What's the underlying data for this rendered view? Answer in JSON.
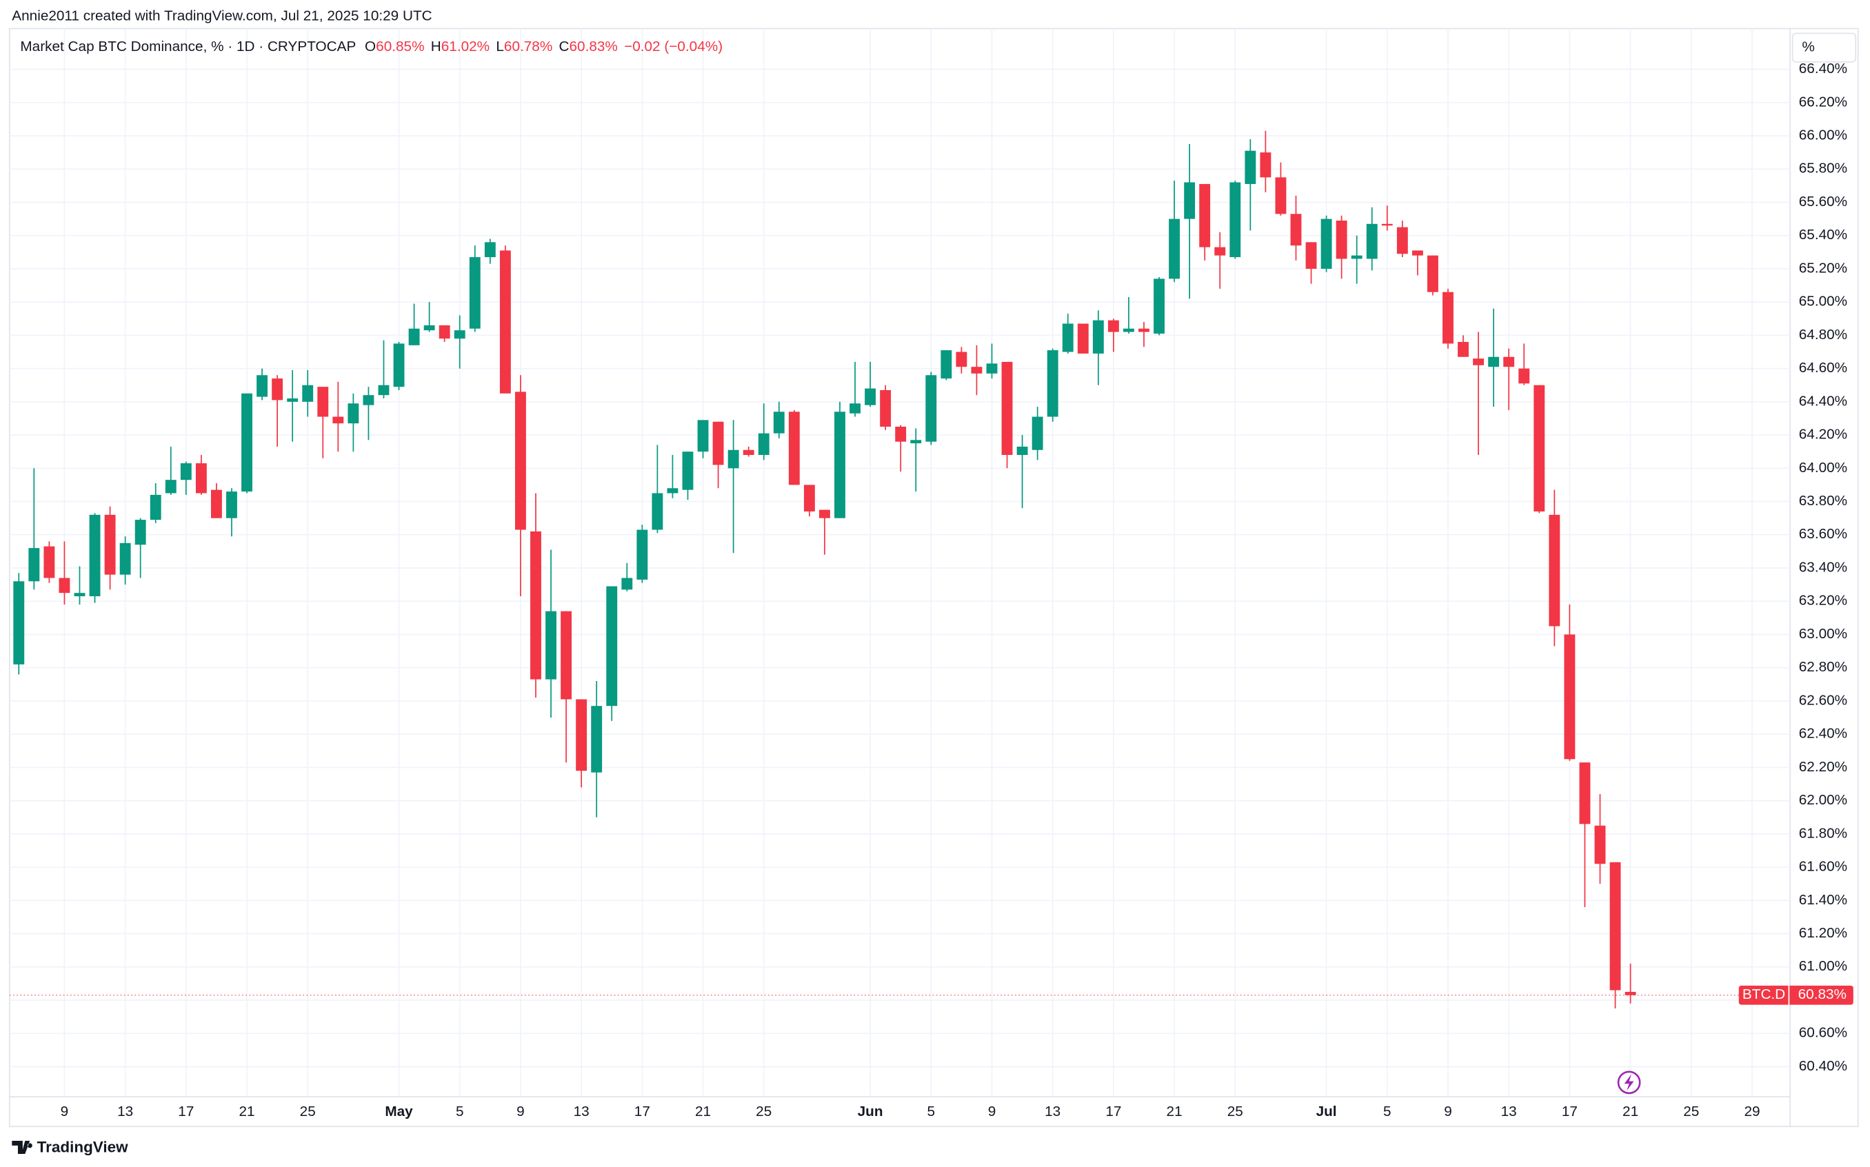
{
  "chart_data": {
    "type": "candlestick",
    "attribution": "Annie2011 created with TradingView.com, Jul 21, 2025 10:29 UTC",
    "title": "Market Cap BTC Dominance, % · 1D · CRYPTOCAP",
    "legend_items": [
      {
        "key": "O",
        "value": "60.85%"
      },
      {
        "key": "H",
        "value": "61.02%"
      },
      {
        "key": "L",
        "value": "60.78%"
      },
      {
        "key": "C",
        "value": "60.83%"
      }
    ],
    "change": "−0.02 (−0.04%)",
    "unit": "%",
    "symbol": "BTC.D",
    "brand": "TradingView",
    "up_color": "#089981",
    "down_color": "#f23645",
    "grid": true,
    "categories": [
      null,
      null,
      null,
      "9",
      null,
      null,
      null,
      "13",
      null,
      null,
      null,
      "17",
      null,
      null,
      null,
      "21",
      null,
      null,
      null,
      "25",
      null,
      null,
      null,
      null,
      null,
      "May",
      null,
      null,
      null,
      "5",
      null,
      null,
      null,
      "9",
      null,
      null,
      null,
      "13",
      null,
      null,
      null,
      "17",
      null,
      null,
      null,
      "21",
      null,
      null,
      null,
      "25",
      null,
      null,
      null,
      null,
      null,
      null,
      "Jun",
      null,
      null,
      null,
      "5",
      null,
      null,
      null,
      "9",
      null,
      null,
      null,
      "13",
      null,
      null,
      null,
      "17",
      null,
      null,
      null,
      "21",
      null,
      null,
      null,
      "25",
      null,
      null,
      null,
      null,
      null,
      "Jul",
      null,
      null,
      null,
      "5",
      null,
      null,
      null,
      "9",
      null,
      null,
      null,
      "13",
      null,
      null,
      null,
      "17",
      null,
      null,
      null,
      "21",
      null,
      null,
      null,
      "25",
      null,
      null,
      null,
      "29",
      null,
      null
    ],
    "open": [
      62.82,
      63.32,
      63.53,
      63.34,
      63.23,
      63.23,
      63.72,
      63.36,
      63.54,
      63.69,
      63.85,
      63.93,
      64.03,
      63.87,
      63.7,
      63.86,
      64.43,
      64.54,
      64.4,
      64.4,
      64.49,
      64.31,
      64.27,
      64.38,
      64.44,
      64.49,
      64.74,
      64.83,
      64.86,
      64.78,
      64.84,
      65.27,
      65.31,
      64.46,
      63.62,
      62.73,
      63.14,
      62.61,
      62.17,
      62.57,
      63.27,
      63.33,
      63.63,
      63.85,
      63.87,
      64.1,
      64.28,
      64.0,
      64.11,
      64.08,
      64.21,
      64.34,
      63.9,
      63.75,
      63.7,
      64.33,
      64.38,
      64.47,
      64.25,
      64.15,
      64.16,
      64.54,
      64.7,
      64.61,
      64.57,
      64.64,
      64.08,
      64.11,
      64.31,
      64.7,
      64.87,
      64.69,
      64.89,
      64.82,
      64.84,
      64.81,
      65.14,
      65.5,
      65.71,
      65.33,
      65.27,
      65.71,
      65.9,
      65.75,
      65.53,
      65.36,
      65.2,
      65.49,
      65.26,
      65.26,
      65.47,
      65.45,
      65.31,
      65.28,
      65.06,
      64.76,
      64.66,
      64.61,
      64.67,
      64.6,
      64.5,
      63.72,
      63.0,
      62.23,
      61.85,
      61.63,
      60.85,
      null,
      null,
      null,
      null,
      null,
      null,
      null,
      null,
      null,
      null
    ],
    "high": [
      63.37,
      64.0,
      63.56,
      63.56,
      63.41,
      63.73,
      63.77,
      63.59,
      63.7,
      63.91,
      64.13,
      64.04,
      64.08,
      63.91,
      63.88,
      64.45,
      64.6,
      64.56,
      64.59,
      64.59,
      64.49,
      64.52,
      64.45,
      64.49,
      64.77,
      64.76,
      64.99,
      65.0,
      64.86,
      64.92,
      65.34,
      65.38,
      65.34,
      64.56,
      63.85,
      63.51,
      63.14,
      62.61,
      62.72,
      63.29,
      63.43,
      63.66,
      64.14,
      64.08,
      64.1,
      64.29,
      64.28,
      64.29,
      64.13,
      64.39,
      64.4,
      64.35,
      63.9,
      63.75,
      64.4,
      64.64,
      64.64,
      64.5,
      64.26,
      64.24,
      64.58,
      64.71,
      64.73,
      64.74,
      64.75,
      64.64,
      64.2,
      64.37,
      64.72,
      64.93,
      64.87,
      64.95,
      64.9,
      65.03,
      64.88,
      65.15,
      65.73,
      65.95,
      65.71,
      65.42,
      65.73,
      65.98,
      66.03,
      65.84,
      65.64,
      65.36,
      65.52,
      65.52,
      65.4,
      65.57,
      65.58,
      65.49,
      65.31,
      65.28,
      65.08,
      64.8,
      64.82,
      64.96,
      64.72,
      64.75,
      64.5,
      63.87,
      63.18,
      62.23,
      62.04,
      61.63,
      61.02,
      null,
      null,
      null,
      null,
      null,
      null,
      null,
      null,
      null,
      null
    ],
    "low": [
      62.76,
      63.27,
      63.31,
      63.18,
      63.18,
      63.19,
      63.27,
      63.3,
      63.34,
      63.67,
      63.84,
      63.84,
      63.84,
      63.7,
      63.59,
      63.85,
      64.41,
      64.13,
      64.16,
      64.31,
      64.06,
      64.1,
      64.1,
      64.17,
      64.42,
      64.47,
      64.74,
      64.82,
      64.76,
      64.6,
      64.82,
      65.23,
      64.45,
      63.23,
      62.62,
      62.5,
      62.23,
      62.08,
      61.9,
      62.48,
      63.26,
      63.31,
      63.61,
      63.82,
      63.81,
      64.06,
      63.88,
      63.49,
      64.07,
      64.05,
      64.18,
      63.9,
      63.71,
      63.48,
      63.7,
      64.31,
      64.37,
      64.23,
      63.98,
      63.86,
      64.14,
      64.53,
      64.57,
      64.44,
      64.54,
      64.0,
      63.76,
      64.05,
      64.28,
      64.69,
      64.69,
      64.5,
      64.7,
      64.81,
      64.73,
      64.8,
      65.12,
      65.02,
      65.25,
      65.08,
      65.26,
      65.43,
      65.66,
      65.52,
      65.25,
      65.11,
      65.18,
      65.14,
      65.11,
      65.19,
      65.43,
      65.27,
      65.16,
      65.04,
      64.72,
      64.67,
      64.08,
      64.37,
      64.35,
      64.5,
      63.73,
      62.93,
      62.24,
      61.36,
      61.5,
      60.75,
      60.78,
      null,
      null,
      null,
      null,
      null,
      null,
      null,
      null,
      null,
      null
    ],
    "close": [
      63.32,
      63.52,
      63.34,
      63.25,
      63.25,
      63.72,
      63.36,
      63.55,
      63.69,
      63.84,
      63.93,
      64.03,
      63.85,
      63.7,
      63.86,
      64.45,
      64.56,
      64.41,
      64.42,
      64.5,
      64.31,
      64.27,
      64.39,
      64.44,
      64.5,
      64.75,
      64.84,
      64.86,
      64.78,
      64.83,
      65.27,
      65.36,
      64.45,
      63.63,
      62.73,
      63.14,
      62.61,
      62.18,
      62.57,
      63.29,
      63.34,
      63.63,
      63.85,
      63.88,
      64.1,
      64.29,
      64.02,
      64.11,
      64.08,
      64.21,
      64.34,
      63.9,
      63.74,
      63.7,
      64.34,
      64.39,
      64.48,
      64.25,
      64.16,
      64.17,
      64.56,
      64.71,
      64.61,
      64.57,
      64.63,
      64.08,
      64.13,
      64.31,
      64.71,
      64.87,
      64.69,
      64.89,
      64.82,
      64.84,
      64.82,
      65.14,
      65.5,
      65.72,
      65.33,
      65.28,
      65.72,
      65.91,
      65.75,
      65.53,
      65.34,
      65.2,
      65.5,
      65.26,
      65.28,
      65.47,
      65.46,
      65.29,
      65.28,
      65.06,
      64.75,
      64.67,
      64.62,
      64.67,
      64.61,
      64.51,
      63.74,
      63.05,
      62.25,
      61.86,
      61.62,
      60.86,
      60.83,
      null,
      null,
      null,
      null,
      null,
      null,
      null,
      null,
      null,
      null
    ],
    "ylim": [
      60.04,
      66.645
    ],
    "yticks": [
      {
        "value": 60.4,
        "label": "60.40%"
      },
      {
        "value": 60.6,
        "label": "60.60%"
      },
      {
        "value": 60.8,
        "label": "60.80%"
      },
      {
        "value": 61.0,
        "label": "61.00%"
      },
      {
        "value": 61.2,
        "label": "61.20%"
      },
      {
        "value": 61.4,
        "label": "61.40%"
      },
      {
        "value": 61.6,
        "label": "61.60%"
      },
      {
        "value": 61.8,
        "label": "61.80%"
      },
      {
        "value": 62.0,
        "label": "62.00%"
      },
      {
        "value": 62.2,
        "label": "62.20%"
      },
      {
        "value": 62.4,
        "label": "62.40%"
      },
      {
        "value": 62.6,
        "label": "62.60%"
      },
      {
        "value": 62.8,
        "label": "62.80%"
      },
      {
        "value": 63.0,
        "label": "63.00%"
      },
      {
        "value": 63.2,
        "label": "63.20%"
      },
      {
        "value": 63.4,
        "label": "63.40%"
      },
      {
        "value": 63.6,
        "label": "63.60%"
      },
      {
        "value": 63.8,
        "label": "63.80%"
      },
      {
        "value": 64.0,
        "label": "64.00%"
      },
      {
        "value": 64.2,
        "label": "64.20%"
      },
      {
        "value": 64.4,
        "label": "64.40%"
      },
      {
        "value": 64.6,
        "label": "64.60%"
      },
      {
        "value": 64.8,
        "label": "64.80%"
      },
      {
        "value": 65.0,
        "label": "65.00%"
      },
      {
        "value": 65.2,
        "label": "65.20%"
      },
      {
        "value": 65.4,
        "label": "65.40%"
      },
      {
        "value": 65.6,
        "label": "65.60%"
      },
      {
        "value": 65.8,
        "label": "65.80%"
      },
      {
        "value": 66.0,
        "label": "66.00%"
      },
      {
        "value": 66.2,
        "label": "66.20%"
      },
      {
        "value": 66.4,
        "label": "66.40%"
      }
    ]
  }
}
